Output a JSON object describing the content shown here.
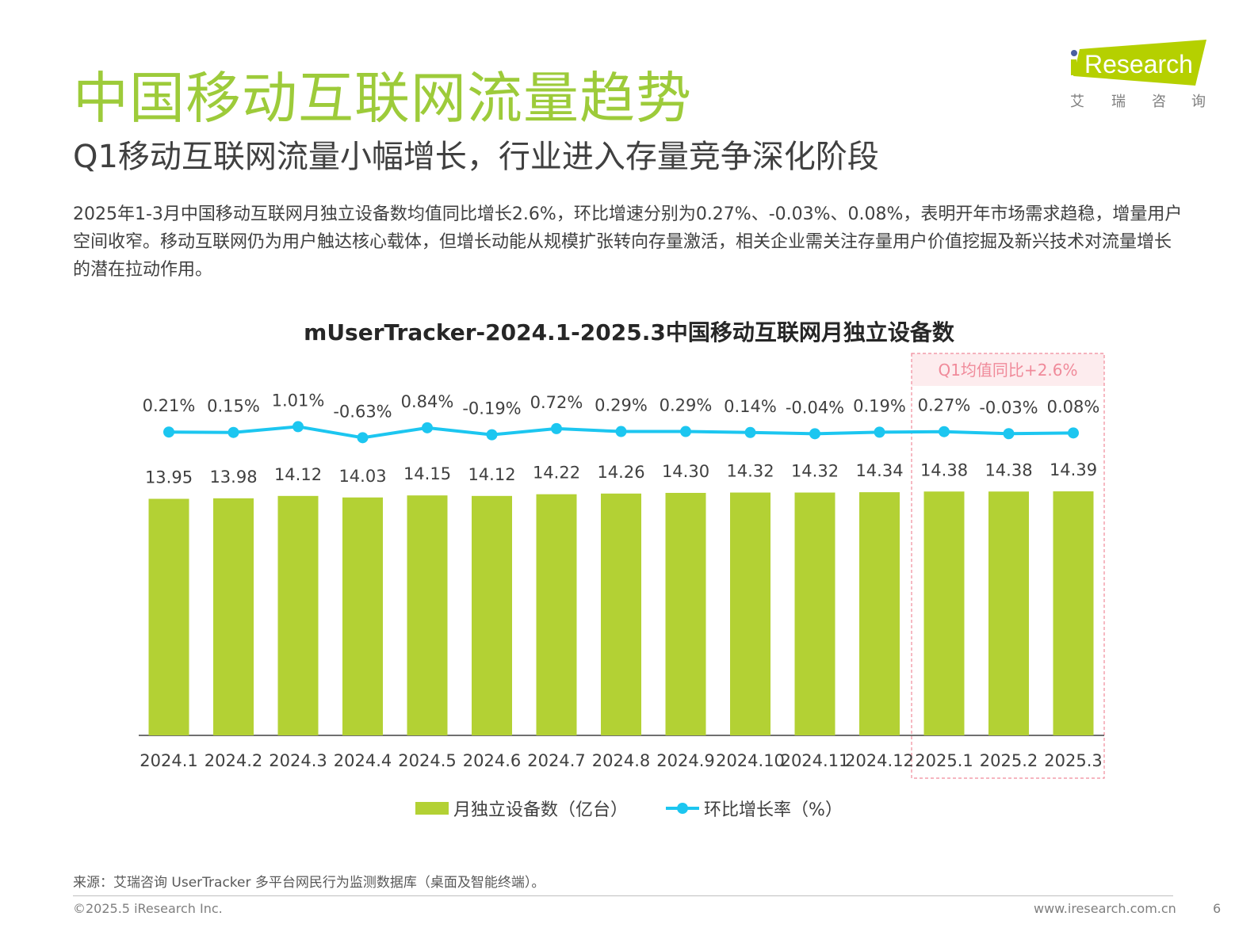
{
  "header": {
    "title": "中国移动互联网流量趋势",
    "subtitle": "Q1移动互联网流量小幅增长，行业进入存量竞争深化阶段",
    "body": "2025年1-3月中国移动互联网月独立设备数均值同比增长2.6%，环比增速分别为0.27%、-0.03%、0.08%，表明开年市场需求趋稳，增量用户空间收窄。移动互联网仍为用户触达核心载体，但增长动能从规模扩张转向存量激活，相关企业需关注存量用户价值挖掘及新兴技术对流量增长的潜在拉动作用。"
  },
  "logo": {
    "text": "iResearch",
    "cn": [
      "艾",
      "瑞",
      "咨",
      "询"
    ],
    "color": "#b5d000",
    "dot_color": "#4a5fa0"
  },
  "chart_data": {
    "type": "bar+line",
    "title": "mUserTracker-2024.1-2025.3中国移动互联网月独立设备数",
    "categories": [
      "2024.1",
      "2024.2",
      "2024.3",
      "2024.4",
      "2024.5",
      "2024.6",
      "2024.7",
      "2024.8",
      "2024.9",
      "2024.10",
      "2024.11",
      "2024.12",
      "2025.1",
      "2025.2",
      "2025.3"
    ],
    "series": [
      {
        "name": "月独立设备数（亿台）",
        "type": "bar",
        "color": "#b3d134",
        "values": [
          13.95,
          13.98,
          14.12,
          14.03,
          14.15,
          14.12,
          14.22,
          14.26,
          14.3,
          14.32,
          14.32,
          14.34,
          14.38,
          14.38,
          14.39
        ]
      },
      {
        "name": "环比增长率（%）",
        "type": "line",
        "color": "#1cc6f0",
        "values": [
          0.21,
          0.15,
          1.01,
          -0.63,
          0.84,
          -0.19,
          0.72,
          0.29,
          0.29,
          0.14,
          -0.04,
          0.19,
          0.27,
          -0.03,
          0.08
        ]
      }
    ],
    "highlight": {
      "label": "Q1均值同比+2.6%",
      "categories": [
        "2025.1",
        "2025.2",
        "2025.3"
      ],
      "color": "#f08a9a"
    },
    "legend": "bottom",
    "grid": false
  },
  "footer": {
    "source": "来源：艾瑞咨询 UserTracker 多平台网民行为监测数据库（桌面及智能终端）。",
    "copyright": "©2025.5 iResearch Inc.",
    "website": "www.iresearch.com.cn",
    "page": "6"
  }
}
